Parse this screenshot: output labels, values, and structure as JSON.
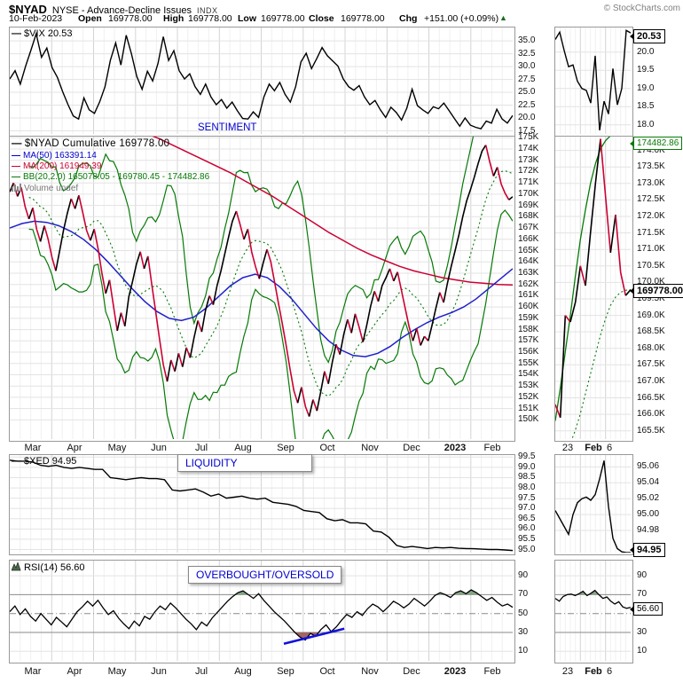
{
  "header": {
    "symbol": "$NYAD",
    "name": "NYSE - Advance-Decline Issues",
    "exchange": "INDX",
    "copyright": "© StockCharts.com",
    "date": "10-Feb-2023",
    "open_label": "Open",
    "open": "169778.00",
    "high_label": "High",
    "high": "169778.00",
    "low_label": "Low",
    "low": "169778.00",
    "close_label": "Close",
    "close": "169778.00",
    "chg_label": "Chg",
    "chg": "+151.00 (+0.09%)"
  },
  "legends": {
    "vix": "$VIX 20.53",
    "nyad": "$NYAD Cumulative 169778.00",
    "ma50": "MA(50) 163391.14",
    "ma200": "MA(200) 161949.39",
    "bb": "BB(20,2.0) 165078.05 - 169780.45 - 174482.86",
    "volume": "Volume undef",
    "xed": "$XED 94.95",
    "rsi": "RSI(14) 56.60"
  },
  "annotations": {
    "sentiment": "SENTIMENT",
    "liquidity": "LIQUIDITY",
    "overbought_oversold": "OVERBOUGHT/OVERSOLD"
  },
  "price_labels": {
    "vix_last": "20.53",
    "bb_upper": "174482.86",
    "nyad_last": "169778.00",
    "xed_last": "94.95",
    "rsi_last": "56.60"
  },
  "x_axis": {
    "months": [
      "Mar",
      "Apr",
      "May",
      "Jun",
      "Jul",
      "Aug",
      "Sep",
      "Oct",
      "Nov",
      "Dec",
      "2023",
      "Feb"
    ],
    "bold_month": "2023",
    "mini": [
      "23",
      "Feb",
      "6"
    ]
  },
  "colors": {
    "price_up": "#000000",
    "price_down": "#cc0033",
    "ma50": "#2020cc",
    "ma200": "#cc0033",
    "bollinger": "#067a06",
    "annotation_blue": "#0000cc",
    "overbought_fill": "#85a585",
    "oversold_fill": "#a06565",
    "trendline_blue": "#1111dd",
    "grid": "#e3e3e3"
  },
  "chart_data": [
    {
      "id": "vix",
      "type": "line",
      "title": "$VIX",
      "last": 20.53,
      "ylim": [
        16.9,
        37.6
      ],
      "yticks": [
        35,
        32.5,
        30,
        27.5,
        25,
        22.5,
        20,
        17.5
      ],
      "ylabels": [
        "35.0",
        "32.5",
        "30.0",
        "27.5",
        "25.0",
        "22.5",
        "20.0",
        "17.5"
      ],
      "values": [
        27.6,
        29.2,
        26.6,
        30.1,
        33.2,
        36.4,
        31.8,
        33.6,
        29.8,
        27.9,
        25.1,
        22.6,
        20.4,
        19.8,
        23.9,
        21.6,
        20.9,
        23.2,
        26.1,
        31.2,
        34.6,
        30.3,
        36.1,
        32.4,
        28.1,
        25.6,
        29.1,
        27.2,
        30.6,
        35.8,
        31.2,
        33.1,
        29.2,
        27.6,
        28.6,
        26.1,
        24.6,
        26.6,
        24.1,
        22.6,
        23.6,
        21.9,
        23.1,
        21.4,
        19.9,
        19.8,
        21.2,
        20.1,
        24.1,
        26.6,
        25.3,
        26.9,
        24.6,
        23.1,
        26.1,
        30.9,
        32.6,
        29.6,
        31.6,
        33.7,
        32.1,
        31.1,
        30.1,
        27.6,
        26.1,
        25.4,
        26.3,
        24.1,
        22.6,
        23.4,
        21.6,
        20.1,
        22.1,
        21.1,
        19.6,
        21.9,
        25.6,
        22.4,
        21.6,
        20.9,
        22.2,
        21.8,
        22.9,
        21.4,
        19.9,
        18.4,
        20.0,
        18.6,
        18.2,
        17.9,
        19.4,
        19.0,
        21.7,
        19.8,
        19.0,
        20.5
      ],
      "mini": {
        "ylim": [
          17.75,
          20.68
        ],
        "yticks": [
          20,
          19.5,
          19,
          18.5,
          18
        ],
        "ylabels": [
          "20.0",
          "19.5",
          "19.0",
          "18.5",
          "18.0"
        ],
        "values": [
          20.35,
          20.55,
          20.05,
          19.6,
          19.65,
          19.2,
          19.0,
          18.95,
          18.6,
          19.9,
          17.85,
          18.65,
          18.3,
          19.55,
          18.55,
          19.0,
          20.6,
          20.53
        ]
      }
    },
    {
      "id": "nyad",
      "type": "line",
      "title": "$NYAD Cumulative",
      "last": 169778.0,
      "units": "thousands",
      "ylim": [
        148.3,
        175.1
      ],
      "yticks": [
        175,
        174,
        173,
        172,
        171,
        170,
        169,
        168,
        167,
        166,
        165,
        164,
        163,
        162,
        161,
        160,
        159,
        158,
        157,
        156,
        155,
        154,
        153,
        152,
        151,
        150
      ],
      "ylabels": [
        "175K",
        "174K",
        "173K",
        "172K",
        "171K",
        "170K",
        "169K",
        "168K",
        "167K",
        "166K",
        "165K",
        "164K",
        "163K",
        "162K",
        "161K",
        "160K",
        "159K",
        "158K",
        "157K",
        "156K",
        "155K",
        "154K",
        "153K",
        "152K",
        "151K",
        "150K"
      ],
      "price": [
        170.2,
        171.0,
        169.8,
        170.6,
        168.9,
        167.8,
        168.8,
        166.9,
        165.8,
        167.2,
        166.0,
        164.4,
        163.2,
        165.0,
        166.8,
        168.3,
        169.6,
        168.7,
        169.9,
        168.4,
        166.8,
        165.9,
        166.9,
        165.2,
        163.0,
        161.2,
        162.4,
        160.1,
        157.9,
        159.5,
        158.3,
        160.9,
        162.3,
        163.8,
        164.9,
        163.4,
        164.5,
        162.0,
        159.6,
        157.2,
        154.9,
        153.4,
        155.3,
        154.3,
        155.9,
        154.7,
        156.4,
        155.5,
        157.3,
        158.8,
        157.8,
        159.7,
        161.0,
        160.2,
        161.9,
        163.2,
        164.7,
        166.2,
        167.6,
        168.5,
        167.3,
        166.0,
        166.9,
        164.9,
        163.6,
        162.5,
        163.9,
        165.1,
        164.0,
        162.2,
        160.3,
        158.5,
        156.6,
        154.5,
        152.6,
        151.5,
        152.9,
        151.2,
        150.3,
        151.8,
        150.8,
        152.5,
        154.3,
        153.2,
        155.1,
        156.7,
        155.8,
        157.6,
        158.9,
        157.7,
        159.4,
        158.2,
        156.9,
        158.4,
        160.1,
        161.4,
        160.5,
        161.9,
        162.6,
        163.4,
        162.3,
        163.1,
        161.5,
        159.9,
        158.3,
        157.0,
        158.1,
        156.6,
        157.4,
        157.0,
        158.4,
        159.9,
        161.3,
        160.4,
        162.1,
        163.6,
        165.0,
        166.4,
        168.0,
        169.4,
        170.4,
        171.5,
        172.7,
        173.8,
        174.35,
        172.9,
        171.6,
        172.4,
        170.9,
        170.1,
        169.5,
        169.78
      ],
      "ma50": [
        167.0,
        167.4,
        167.6,
        167.5,
        167.2,
        166.7,
        166.0,
        165.1,
        164.0,
        162.8,
        161.6,
        160.5,
        159.6,
        159.0,
        158.8,
        159.1,
        159.9,
        160.9,
        161.9,
        162.6,
        162.9,
        162.6,
        161.8,
        160.7,
        159.4,
        158.1,
        157.0,
        156.2,
        155.7,
        155.6,
        155.9,
        156.5,
        157.3,
        158.0,
        158.6,
        159.1,
        159.5,
        160.0,
        160.7,
        161.6,
        162.5,
        163.4
      ],
      "ma200": [
        175.4,
        174.9,
        174.3,
        173.7,
        173.1,
        172.5,
        171.9,
        171.2,
        170.5,
        169.8,
        169.0,
        168.2,
        167.4,
        166.6,
        165.9,
        165.2,
        164.6,
        164.1,
        163.6,
        163.2,
        162.9,
        162.6,
        162.4,
        162.2,
        162.1,
        162.0,
        161.95
      ],
      "ma200_start_frac": 0.27,
      "bollinger_params": {
        "window": 20,
        "sigma": 2.0,
        "lower": 165078.05,
        "mid": 169780.45,
        "upper": 174482.86
      },
      "mini": {
        "ylim": [
          165.25,
          174.42
        ],
        "yticks": [
          174,
          173.5,
          173,
          172.5,
          172,
          171.5,
          171,
          170.5,
          170,
          169.5,
          169,
          168.5,
          168,
          167.5,
          167,
          166.5,
          166,
          165.5
        ],
        "ylabels": [
          "174.0K",
          "173.5K",
          "173.0K",
          "172.5K",
          "172.0K",
          "171.5K",
          "171.0K",
          "170.5K",
          "170.0K",
          "169.5K",
          "169.0K",
          "168.5K",
          "168.0K",
          "167.5K",
          "167.0K",
          "166.5K",
          "166.0K",
          "165.5K"
        ],
        "price": [
          166.3,
          165.9,
          169.0,
          168.8,
          169.4,
          170.5,
          169.9,
          171.5,
          173.0,
          174.35,
          172.6,
          170.9,
          172.05,
          170.3,
          169.6,
          169.78
        ],
        "bb_upper": [
          165.8,
          166.8,
          167.9,
          169.0,
          170.2,
          171.3,
          172.2,
          173.0,
          173.6,
          174.05,
          174.3,
          174.45,
          174.5,
          174.5,
          174.48,
          174.48
        ],
        "bb_mid": [
          164.8,
          165.1,
          165.5,
          166.0,
          166.6,
          167.2,
          167.8,
          168.4,
          168.9,
          169.3,
          169.55,
          169.7,
          169.76,
          169.78
        ],
        "bb_mid_start_frac": 0.13
      }
    },
    {
      "id": "xed",
      "type": "line",
      "title": "$XED",
      "last": 94.95,
      "ylim": [
        94.85,
        99.6
      ],
      "yticks": [
        99.5,
        99,
        98.5,
        98,
        97.5,
        97,
        96.5,
        96,
        95.5,
        95
      ],
      "ylabels": [
        "99.5",
        "99.0",
        "98.5",
        "98.0",
        "97.5",
        "97.0",
        "96.5",
        "96.0",
        "95.5",
        "95.0"
      ],
      "values": [
        99.35,
        99.3,
        99.3,
        99.25,
        99.1,
        99.05,
        99.1,
        99.0,
        98.95,
        99.0,
        98.95,
        98.9,
        98.9,
        98.5,
        98.45,
        98.4,
        98.45,
        98.5,
        98.45,
        98.45,
        98.4,
        97.9,
        97.85,
        97.9,
        97.95,
        97.8,
        97.6,
        97.7,
        97.5,
        97.55,
        97.6,
        97.5,
        97.45,
        97.5,
        97.3,
        97.25,
        97.2,
        97.1,
        96.9,
        96.85,
        96.8,
        96.5,
        96.4,
        96.45,
        96.3,
        96.3,
        96.25,
        95.9,
        95.85,
        95.6,
        95.2,
        95.1,
        95.15,
        95.1,
        95.05,
        95.1,
        95.08,
        95.1,
        95.06,
        95.05,
        95.04,
        95.02,
        95.0,
        95.0,
        94.98,
        94.95
      ],
      "mini": {
        "ylim": [
          94.952,
          95.075
        ],
        "yticks": [
          95.06,
          95.04,
          95.02,
          95.0,
          94.98
        ],
        "ylabels": [
          "95.06",
          "95.04",
          "95.02",
          "95.00",
          "94.98"
        ],
        "values": [
          95.005,
          94.995,
          94.985,
          94.975,
          95.0,
          95.015,
          95.02,
          95.022,
          95.018,
          95.025,
          95.045,
          95.068,
          95.01,
          94.97,
          94.957,
          94.953,
          94.952,
          94.952
        ]
      }
    },
    {
      "id": "rsi",
      "type": "line",
      "title": "RSI(14)",
      "last": 56.6,
      "ylim": [
        0,
        106
      ],
      "yticks": [
        90,
        70,
        50,
        30,
        10
      ],
      "ylabels": [
        "90",
        "70",
        "50",
        "30",
        "10"
      ],
      "overbought_level": 70,
      "oversold_level": 30,
      "midline": 50,
      "values": [
        52,
        58,
        49,
        55,
        47,
        42,
        50,
        44,
        38,
        46,
        41,
        36,
        44,
        52,
        57,
        63,
        58,
        64,
        56,
        49,
        53,
        45,
        39,
        34,
        42,
        37,
        47,
        44,
        52,
        58,
        54,
        61,
        56,
        50,
        44,
        39,
        33,
        41,
        37,
        45,
        51,
        57,
        63,
        68,
        72,
        74,
        70,
        66,
        71,
        64,
        58,
        52,
        47,
        42,
        36,
        30,
        25,
        22,
        29,
        26,
        33,
        38,
        31,
        36,
        43,
        49,
        46,
        52,
        48,
        55,
        60,
        57,
        52,
        57,
        63,
        60,
        56,
        60,
        66,
        62,
        58,
        63,
        69,
        72,
        70,
        67,
        72,
        74,
        71,
        75,
        72,
        68,
        64,
        67,
        62,
        58,
        60,
        56.6
      ],
      "trendline": {
        "x0_frac": 0.545,
        "y0": 18,
        "x1_frac": 0.665,
        "y1": 34
      },
      "mini": {
        "ylim": [
          0,
          106
        ],
        "yticks": [
          90,
          70,
          50,
          30,
          10
        ],
        "ylabels": [
          "90",
          "70",
          "50",
          "30",
          "10"
        ],
        "values": [
          66,
          63,
          68,
          70,
          70.5,
          69,
          71,
          73.5,
          69,
          71.5,
          74.5,
          70,
          66,
          67.5,
          63,
          60,
          62.5,
          57,
          55.5,
          56.6
        ]
      }
    }
  ]
}
